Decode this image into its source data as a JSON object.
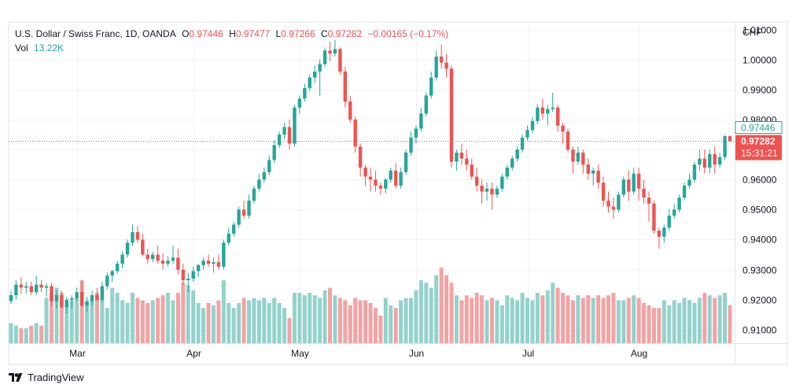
{
  "legend": {
    "symbol": "U.S. Dollar / Swiss Franc, 1D, OANDA",
    "o_label": "O",
    "o_value": "0.97446",
    "h_label": "H",
    "h_value": "0.97477",
    "l_label": "L",
    "l_value": "0.97266",
    "c_label": "C",
    "c_value": "0.97282",
    "change": "−0.00165 (−0.17%)",
    "vol_label": "Vol",
    "vol_value": "13.22K"
  },
  "footer": {
    "brand": "TradingView"
  },
  "colors": {
    "up": "#26a69a",
    "down": "#ef5350",
    "vol_up": "#94d2cc",
    "vol_down": "#f2a3a3",
    "grid": "#f0f3fa",
    "axis_text": "#131722"
  },
  "chart_data": {
    "type": "candlestick",
    "currency": "CHF",
    "yticks": [
      "1.01000",
      "1.00000",
      "0.99000",
      "0.98000",
      "0.97000",
      "0.96000",
      "0.95000",
      "0.94000",
      "0.93000",
      "0.92000",
      "0.91000"
    ],
    "ylim": [
      0.9055,
      1.0125
    ],
    "xlabels": [
      {
        "label": "Mar",
        "index": 13
      },
      {
        "label": "Apr",
        "index": 36
      },
      {
        "label": "May",
        "index": 57
      },
      {
        "label": "Jun",
        "index": 80
      },
      {
        "label": "Jul",
        "index": 102
      },
      {
        "label": "Aug",
        "index": 124
      }
    ],
    "last_price": {
      "value": 0.97282,
      "label": "0.97282",
      "countdown": "15:31:21"
    },
    "prev_close": {
      "value": 0.97446,
      "label": "0.97446"
    },
    "volume_max": 30,
    "candles": [
      [
        0.9195,
        0.923,
        0.9185,
        0.9215,
        8
      ],
      [
        0.9215,
        0.9265,
        0.92,
        0.925,
        7
      ],
      [
        0.925,
        0.9275,
        0.922,
        0.924,
        6
      ],
      [
        0.924,
        0.926,
        0.922,
        0.9245,
        6
      ],
      [
        0.9245,
        0.926,
        0.9215,
        0.9225,
        7
      ],
      [
        0.9225,
        0.928,
        0.9215,
        0.925,
        8
      ],
      [
        0.925,
        0.9265,
        0.9225,
        0.924,
        7
      ],
      [
        0.924,
        0.9255,
        0.921,
        0.9245,
        18
      ],
      [
        0.9245,
        0.9255,
        0.918,
        0.9195,
        20
      ],
      [
        0.9195,
        0.923,
        0.917,
        0.9215,
        22
      ],
      [
        0.9215,
        0.923,
        0.917,
        0.9175,
        20
      ],
      [
        0.9175,
        0.921,
        0.9155,
        0.92,
        16
      ],
      [
        0.92,
        0.9215,
        0.917,
        0.9205,
        17
      ],
      [
        0.9205,
        0.924,
        0.9195,
        0.9225,
        18
      ],
      [
        0.9225,
        0.926,
        0.9175,
        0.918,
        25
      ],
      [
        0.918,
        0.921,
        0.916,
        0.9195,
        16
      ],
      [
        0.9195,
        0.923,
        0.918,
        0.9215,
        17
      ],
      [
        0.9215,
        0.924,
        0.9195,
        0.92,
        20
      ],
      [
        0.92,
        0.926,
        0.919,
        0.9245,
        18
      ],
      [
        0.9245,
        0.929,
        0.9235,
        0.928,
        14
      ],
      [
        0.928,
        0.93,
        0.926,
        0.9295,
        22
      ],
      [
        0.9295,
        0.933,
        0.9285,
        0.932,
        20
      ],
      [
        0.932,
        0.936,
        0.9305,
        0.935,
        17
      ],
      [
        0.935,
        0.94,
        0.934,
        0.939,
        16
      ],
      [
        0.939,
        0.945,
        0.938,
        0.9425,
        20
      ],
      [
        0.9425,
        0.9445,
        0.939,
        0.94,
        18
      ],
      [
        0.94,
        0.942,
        0.9345,
        0.935,
        17
      ],
      [
        0.935,
        0.937,
        0.932,
        0.9335,
        16
      ],
      [
        0.9335,
        0.936,
        0.9325,
        0.935,
        17
      ],
      [
        0.935,
        0.938,
        0.932,
        0.933,
        18
      ],
      [
        0.933,
        0.9355,
        0.93,
        0.932,
        19
      ],
      [
        0.932,
        0.9345,
        0.931,
        0.933,
        20
      ],
      [
        0.933,
        0.938,
        0.932,
        0.934,
        17
      ],
      [
        0.934,
        0.937,
        0.9285,
        0.93,
        20
      ],
      [
        0.93,
        0.932,
        0.925,
        0.9265,
        24
      ],
      [
        0.9265,
        0.929,
        0.9225,
        0.927,
        23
      ],
      [
        0.927,
        0.931,
        0.926,
        0.9295,
        21
      ],
      [
        0.9295,
        0.932,
        0.9275,
        0.9315,
        16
      ],
      [
        0.9315,
        0.934,
        0.93,
        0.933,
        14
      ],
      [
        0.933,
        0.935,
        0.931,
        0.932,
        16
      ],
      [
        0.932,
        0.934,
        0.929,
        0.9325,
        15
      ],
      [
        0.9325,
        0.935,
        0.93,
        0.931,
        17
      ],
      [
        0.931,
        0.94,
        0.93,
        0.939,
        25
      ],
      [
        0.939,
        0.944,
        0.938,
        0.942,
        16
      ],
      [
        0.942,
        0.946,
        0.941,
        0.945,
        14
      ],
      [
        0.945,
        0.951,
        0.944,
        0.95,
        16
      ],
      [
        0.95,
        0.953,
        0.947,
        0.948,
        18
      ],
      [
        0.948,
        0.955,
        0.947,
        0.953,
        17
      ],
      [
        0.953,
        0.958,
        0.952,
        0.957,
        18
      ],
      [
        0.957,
        0.962,
        0.956,
        0.96,
        17
      ],
      [
        0.96,
        0.964,
        0.959,
        0.9625,
        18
      ],
      [
        0.9625,
        0.968,
        0.9615,
        0.9665,
        16
      ],
      [
        0.9665,
        0.973,
        0.9655,
        0.9715,
        18
      ],
      [
        0.9715,
        0.976,
        0.9705,
        0.975,
        16
      ],
      [
        0.975,
        0.979,
        0.9735,
        0.9775,
        14
      ],
      [
        0.9775,
        0.98,
        0.97,
        0.972,
        10
      ],
      [
        0.972,
        0.985,
        0.971,
        0.984,
        20
      ],
      [
        0.984,
        0.988,
        0.982,
        0.987,
        20
      ],
      [
        0.987,
        0.992,
        0.986,
        0.9905,
        19
      ],
      [
        0.9905,
        0.995,
        0.9895,
        0.994,
        20
      ],
      [
        0.994,
        0.998,
        0.992,
        0.996,
        19
      ],
      [
        0.996,
        1.0,
        0.988,
        0.9985,
        18
      ],
      [
        0.9985,
        1.004,
        0.9975,
        1.003,
        21
      ],
      [
        1.003,
        1.006,
        0.9995,
        1.002,
        22
      ],
      [
        1.002,
        1.0065,
        1.001,
        1.0035,
        19
      ],
      [
        1.0035,
        1.004,
        0.995,
        0.996,
        18
      ],
      [
        0.996,
        0.9975,
        0.984,
        0.986,
        17
      ],
      [
        0.986,
        0.988,
        0.979,
        0.98,
        15
      ],
      [
        0.98,
        0.981,
        0.969,
        0.971,
        18
      ],
      [
        0.971,
        0.972,
        0.961,
        0.964,
        17
      ],
      [
        0.964,
        0.965,
        0.958,
        0.961,
        17
      ],
      [
        0.961,
        0.964,
        0.956,
        0.96,
        16
      ],
      [
        0.96,
        0.963,
        0.956,
        0.958,
        14
      ],
      [
        0.958,
        0.959,
        0.955,
        0.957,
        11
      ],
      [
        0.957,
        0.9605,
        0.9555,
        0.96,
        18
      ],
      [
        0.96,
        0.964,
        0.959,
        0.963,
        15
      ],
      [
        0.963,
        0.9655,
        0.957,
        0.958,
        14
      ],
      [
        0.958,
        0.964,
        0.957,
        0.9625,
        17
      ],
      [
        0.9625,
        0.97,
        0.9615,
        0.969,
        18
      ],
      [
        0.969,
        0.976,
        0.968,
        0.974,
        18
      ],
      [
        0.974,
        0.978,
        0.972,
        0.977,
        21
      ],
      [
        0.977,
        0.984,
        0.976,
        0.982,
        25
      ],
      [
        0.982,
        0.989,
        0.981,
        0.988,
        24
      ],
      [
        0.988,
        0.996,
        0.987,
        0.994,
        22
      ],
      [
        0.994,
        1.003,
        0.993,
        1.001,
        27
      ],
      [
        1.001,
        1.005,
        0.997,
        0.999,
        30
      ],
      [
        0.999,
        1.002,
        0.994,
        0.997,
        27
      ],
      [
        0.997,
        0.998,
        0.964,
        0.966,
        24
      ],
      [
        0.966,
        0.97,
        0.963,
        0.969,
        19
      ],
      [
        0.969,
        0.972,
        0.965,
        0.967,
        17
      ],
      [
        0.967,
        0.97,
        0.963,
        0.965,
        19
      ],
      [
        0.965,
        0.967,
        0.96,
        0.961,
        18
      ],
      [
        0.961,
        0.964,
        0.956,
        0.958,
        20
      ],
      [
        0.958,
        0.96,
        0.952,
        0.956,
        19
      ],
      [
        0.956,
        0.959,
        0.953,
        0.957,
        17
      ],
      [
        0.957,
        0.959,
        0.95,
        0.955,
        18
      ],
      [
        0.955,
        0.958,
        0.954,
        0.957,
        17
      ],
      [
        0.957,
        0.962,
        0.956,
        0.961,
        15
      ],
      [
        0.961,
        0.965,
        0.96,
        0.964,
        19
      ],
      [
        0.964,
        0.968,
        0.963,
        0.967,
        18
      ],
      [
        0.967,
        0.971,
        0.966,
        0.97,
        17
      ],
      [
        0.97,
        0.975,
        0.969,
        0.974,
        20
      ],
      [
        0.974,
        0.978,
        0.973,
        0.9765,
        18
      ],
      [
        0.9765,
        0.981,
        0.9755,
        0.9795,
        17
      ],
      [
        0.9795,
        0.985,
        0.9785,
        0.984,
        20
      ],
      [
        0.984,
        0.987,
        0.98,
        0.982,
        19
      ],
      [
        0.982,
        0.985,
        0.978,
        0.9835,
        21
      ],
      [
        0.9835,
        0.989,
        0.9825,
        0.984,
        24
      ],
      [
        0.984,
        0.985,
        0.976,
        0.978,
        22
      ],
      [
        0.978,
        0.979,
        0.972,
        0.976,
        20
      ],
      [
        0.976,
        0.977,
        0.969,
        0.97,
        19
      ],
      [
        0.97,
        0.971,
        0.962,
        0.966,
        17
      ],
      [
        0.966,
        0.971,
        0.965,
        0.969,
        19
      ],
      [
        0.969,
        0.97,
        0.962,
        0.965,
        18
      ],
      [
        0.965,
        0.967,
        0.96,
        0.962,
        19
      ],
      [
        0.962,
        0.964,
        0.958,
        0.963,
        18
      ],
      [
        0.963,
        0.965,
        0.957,
        0.959,
        19
      ],
      [
        0.959,
        0.961,
        0.951,
        0.953,
        18
      ],
      [
        0.953,
        0.956,
        0.949,
        0.951,
        19
      ],
      [
        0.951,
        0.954,
        0.947,
        0.95,
        20
      ],
      [
        0.95,
        0.956,
        0.949,
        0.955,
        17
      ],
      [
        0.955,
        0.961,
        0.954,
        0.96,
        17
      ],
      [
        0.96,
        0.963,
        0.953,
        0.956,
        18
      ],
      [
        0.956,
        0.964,
        0.955,
        0.962,
        19
      ],
      [
        0.962,
        0.964,
        0.953,
        0.957,
        18
      ],
      [
        0.957,
        0.96,
        0.952,
        0.954,
        16
      ],
      [
        0.954,
        0.956,
        0.946,
        0.952,
        15
      ],
      [
        0.952,
        0.953,
        0.942,
        0.943,
        14
      ],
      [
        0.943,
        0.944,
        0.937,
        0.941,
        14
      ],
      [
        0.941,
        0.945,
        0.939,
        0.944,
        17
      ],
      [
        0.944,
        0.95,
        0.943,
        0.948,
        15
      ],
      [
        0.948,
        0.952,
        0.947,
        0.95,
        17
      ],
      [
        0.95,
        0.955,
        0.949,
        0.954,
        16
      ],
      [
        0.954,
        0.959,
        0.953,
        0.958,
        18
      ],
      [
        0.958,
        0.962,
        0.957,
        0.96,
        17
      ],
      [
        0.96,
        0.966,
        0.959,
        0.965,
        16
      ],
      [
        0.965,
        0.97,
        0.963,
        0.967,
        18
      ],
      [
        0.967,
        0.97,
        0.962,
        0.964,
        20
      ],
      [
        0.964,
        0.97,
        0.962,
        0.9685,
        19
      ],
      [
        0.9685,
        0.971,
        0.962,
        0.965,
        18
      ],
      [
        0.965,
        0.969,
        0.964,
        0.9675,
        19
      ],
      [
        0.9675,
        0.9748,
        0.9665,
        0.9745,
        20
      ],
      [
        0.97446,
        0.97477,
        0.97266,
        0.97282,
        15
      ]
    ]
  }
}
